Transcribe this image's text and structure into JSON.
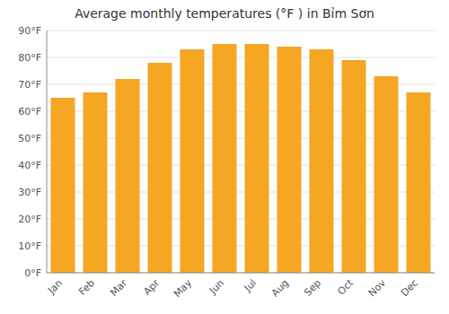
{
  "chart_data": {
    "type": "bar",
    "title": "Average monthly temperatures (°F ) in Bỉm Sơn",
    "categories": [
      "Jan",
      "Feb",
      "Mar",
      "Apr",
      "May",
      "Jun",
      "Jul",
      "Aug",
      "Sep",
      "Oct",
      "Nov",
      "Dec"
    ],
    "values": [
      65,
      67,
      72,
      78,
      83,
      85,
      85,
      84,
      83,
      79,
      73,
      67
    ],
    "color": "#F5A623",
    "ylim": [
      0,
      90
    ],
    "yticks": [
      {
        "value": 0,
        "label": "0°F"
      },
      {
        "value": 10,
        "label": "10°F"
      },
      {
        "value": 20,
        "label": "20°F"
      },
      {
        "value": 30,
        "label": "30°F"
      },
      {
        "value": 40,
        "label": "40°F"
      },
      {
        "value": 50,
        "label": "50°F"
      },
      {
        "value": 60,
        "label": "60°F"
      },
      {
        "value": 70,
        "label": "70°F"
      },
      {
        "value": 80,
        "label": "80°F"
      },
      {
        "value": 90,
        "label": "90°F"
      }
    ],
    "grid": true
  }
}
